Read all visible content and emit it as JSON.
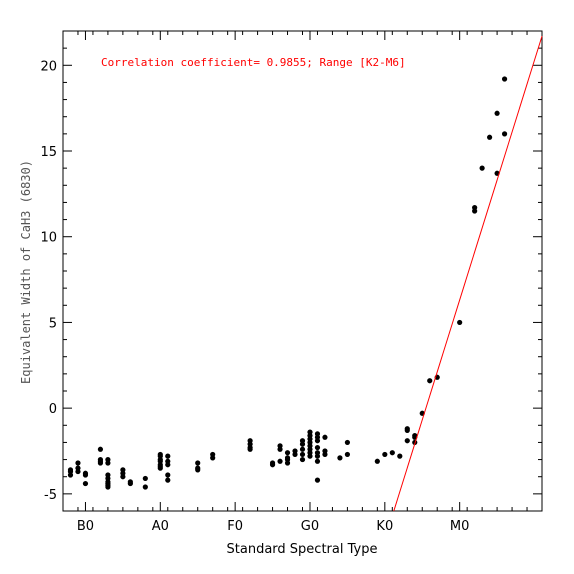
{
  "chart_data": {
    "type": "scatter",
    "title": "",
    "xlabel": "Standard Spectral Type",
    "ylabel": "Equivalent Width of CaH3 (6830)",
    "annotation": "Correlation coefficient= 0.9855; Range [K2-M6]",
    "xlim": [
      -3,
      61
    ],
    "ylim": [
      -6,
      22
    ],
    "x_ticks": [
      {
        "value": 0,
        "label": "B0"
      },
      {
        "value": 10,
        "label": "A0"
      },
      {
        "value": 20,
        "label": "F0"
      },
      {
        "value": 30,
        "label": "G0"
      },
      {
        "value": 40,
        "label": "K0"
      },
      {
        "value": 50,
        "label": "M0"
      }
    ],
    "y_ticks": [
      {
        "value": -5,
        "label": "-5"
      },
      {
        "value": 0,
        "label": "0"
      },
      {
        "value": 5,
        "label": "5"
      },
      {
        "value": 10,
        "label": "10"
      },
      {
        "value": 15,
        "label": "15"
      },
      {
        "value": 20,
        "label": "20"
      }
    ],
    "fit_line": {
      "x": [
        41.2,
        61
      ],
      "y": [
        -6,
        21.7
      ]
    },
    "series": [
      {
        "points": [
          [
            -2,
            -3.6
          ],
          [
            -2,
            -3.7
          ],
          [
            -2,
            -3.9
          ],
          [
            -1,
            -3.2
          ],
          [
            -1,
            -3.5
          ],
          [
            -1,
            -3.7
          ],
          [
            0,
            -3.8
          ],
          [
            0,
            -3.9
          ],
          [
            0,
            -4.4
          ],
          [
            2,
            -2.4
          ],
          [
            2,
            -3.0
          ],
          [
            2,
            -3.1
          ],
          [
            2,
            -3.2
          ],
          [
            3,
            -3.0
          ],
          [
            3,
            -3.2
          ],
          [
            3,
            -3.9
          ],
          [
            3,
            -4.1
          ],
          [
            3,
            -4.3
          ],
          [
            3,
            -4.4
          ],
          [
            3,
            -4.5
          ],
          [
            3,
            -4.6
          ],
          [
            5,
            -3.6
          ],
          [
            5,
            -3.8
          ],
          [
            5,
            -4.0
          ],
          [
            6,
            -4.3
          ],
          [
            6,
            -4.4
          ],
          [
            8,
            -4.1
          ],
          [
            8,
            -4.6
          ],
          [
            10,
            -2.7
          ],
          [
            10,
            -2.8
          ],
          [
            10,
            -3.0
          ],
          [
            10,
            -3.1
          ],
          [
            10,
            -3.3
          ],
          [
            10,
            -3.4
          ],
          [
            10,
            -3.5
          ],
          [
            11,
            -2.8
          ],
          [
            11,
            -3.1
          ],
          [
            11,
            -3.3
          ],
          [
            11,
            -3.9
          ],
          [
            11,
            -4.2
          ],
          [
            15,
            -3.2
          ],
          [
            15,
            -3.5
          ],
          [
            15,
            -3.6
          ],
          [
            17,
            -2.7
          ],
          [
            17,
            -2.9
          ],
          [
            22,
            -1.9
          ],
          [
            22,
            -2.1
          ],
          [
            22,
            -2.3
          ],
          [
            22,
            -2.4
          ],
          [
            25,
            -3.2
          ],
          [
            25,
            -3.3
          ],
          [
            26,
            -2.2
          ],
          [
            26,
            -2.4
          ],
          [
            26,
            -3.1
          ],
          [
            27,
            -2.6
          ],
          [
            27,
            -2.9
          ],
          [
            27,
            -3.0
          ],
          [
            27,
            -3.2
          ],
          [
            28,
            -2.5
          ],
          [
            28,
            -2.7
          ],
          [
            29,
            -1.9
          ],
          [
            29,
            -2.1
          ],
          [
            29,
            -2.4
          ],
          [
            29,
            -2.7
          ],
          [
            29,
            -3.0
          ],
          [
            30,
            -1.4
          ],
          [
            30,
            -1.6
          ],
          [
            30,
            -1.8
          ],
          [
            30,
            -2.0
          ],
          [
            30,
            -2.2
          ],
          [
            30,
            -2.4
          ],
          [
            30,
            -2.6
          ],
          [
            30,
            -2.8
          ],
          [
            31,
            -1.5
          ],
          [
            31,
            -1.7
          ],
          [
            31,
            -1.9
          ],
          [
            31,
            -2.3
          ],
          [
            31,
            -2.6
          ],
          [
            31,
            -2.8
          ],
          [
            31,
            -3.1
          ],
          [
            31,
            -4.2
          ],
          [
            32,
            -1.7
          ],
          [
            32,
            -2.5
          ],
          [
            32,
            -2.7
          ],
          [
            34,
            -2.9
          ],
          [
            35,
            -2.0
          ],
          [
            35,
            -2.7
          ],
          [
            39,
            -3.1
          ],
          [
            40,
            -2.7
          ],
          [
            41,
            -2.6
          ],
          [
            42,
            -2.8
          ],
          [
            43,
            -1.2
          ],
          [
            43,
            -1.3
          ],
          [
            43,
            -1.9
          ],
          [
            44,
            -1.6
          ],
          [
            44,
            -1.7
          ],
          [
            44,
            -2.0
          ],
          [
            45,
            -0.3
          ],
          [
            46,
            1.6
          ],
          [
            47,
            1.8
          ],
          [
            50,
            5.0
          ],
          [
            52,
            11.5
          ],
          [
            52,
            11.7
          ],
          [
            53,
            14.0
          ],
          [
            54,
            15.8
          ],
          [
            55,
            13.7
          ],
          [
            55,
            17.2
          ],
          [
            56,
            16.0
          ],
          [
            56,
            19.2
          ]
        ]
      }
    ]
  }
}
